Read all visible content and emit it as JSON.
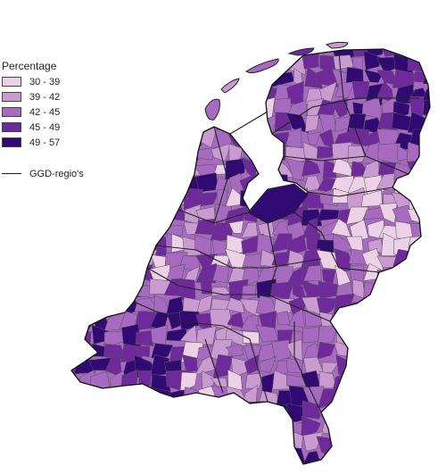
{
  "legend": {
    "title": "Percentage",
    "classes": [
      {
        "label": "30 - 39",
        "color": "#ecd1e7"
      },
      {
        "label": "39 - 42",
        "color": "#c99bd1"
      },
      {
        "label": "42 - 45",
        "color": "#a66ac0"
      },
      {
        "label": "45 - 49",
        "color": "#6e2a9a"
      },
      {
        "label": "49 - 57",
        "color": "#300a72"
      }
    ],
    "boundary_label": "GGD-regio's"
  }
}
